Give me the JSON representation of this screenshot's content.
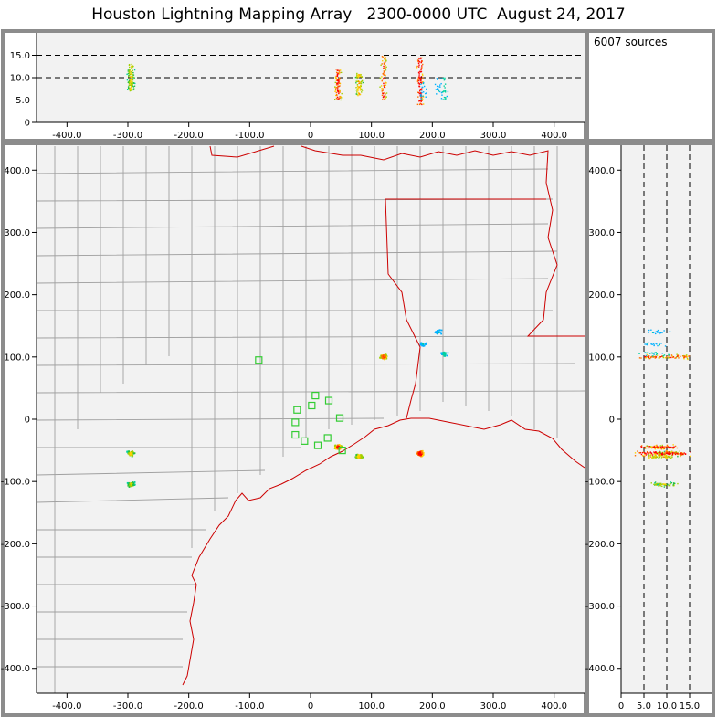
{
  "title": "Houston Lightning Mapping Array   2300-0000 UTC  August 24, 2017",
  "source_count": "6007 sources",
  "colors": {
    "frame": "#8c8c8c",
    "plot_bg": "#f2f2f2",
    "county_line": "#a0a0a0",
    "state_coast_line": "#cc0000",
    "station_marker": "#33cc33",
    "ref_line": "#000000"
  },
  "chart_data": {
    "type": "scatter",
    "panels": {
      "altitude_vs_x": {
        "xlim": [
          -450,
          450
        ],
        "ylim": [
          0,
          20
        ],
        "x_ticks": [
          "-400.0",
          "-300.0",
          "-200.0",
          "-100.0",
          "0",
          "100.0",
          "200.0",
          "300.0",
          "400.0"
        ],
        "y_ticks": [
          "0",
          "5.0",
          "10.0",
          "15.0"
        ],
        "reference_levels": [
          5,
          10,
          15
        ]
      },
      "plan_view": {
        "xlim": [
          -450,
          450
        ],
        "ylim": [
          -440,
          440
        ],
        "x_ticks": [
          "-400.0",
          "-300.0",
          "-200.0",
          "-100.0",
          "0",
          "100.0",
          "200.0",
          "300.0",
          "400.0"
        ],
        "y_ticks": [
          "-400.0",
          "-300.0",
          "-200.0",
          "-100.0",
          "0",
          "100.0",
          "200.0",
          "300.0",
          "400.0"
        ]
      },
      "y_vs_altitude": {
        "xlim": [
          0,
          20
        ],
        "ylim": [
          -440,
          440
        ],
        "x_ticks": [
          "0",
          "5.0",
          "10.0",
          "15.0"
        ],
        "reference_levels": [
          5,
          10,
          15
        ]
      }
    },
    "clusters": [
      {
        "x": -295,
        "y": -55,
        "alt_min": 7,
        "alt_max": 13,
        "density": 1.0
      },
      {
        "x": -295,
        "y": -105,
        "alt_min": 7,
        "alt_max": 12,
        "density": 0.9
      },
      {
        "x": 45,
        "y": -45,
        "alt_min": 5,
        "alt_max": 12,
        "density": 1.4
      },
      {
        "x": 80,
        "y": -60,
        "alt_min": 6,
        "alt_max": 11,
        "density": 1.1
      },
      {
        "x": 120,
        "y": 100,
        "alt_min": 5,
        "alt_max": 15,
        "density": 1.3
      },
      {
        "x": 180,
        "y": -55,
        "alt_min": 4,
        "alt_max": 15,
        "density": 1.6
      },
      {
        "x": 220,
        "y": 105,
        "alt_min": 5,
        "alt_max": 10,
        "density": 0.4
      },
      {
        "x": 210,
        "y": 140,
        "alt_min": 6,
        "alt_max": 10,
        "density": 0.3
      },
      {
        "x": 185,
        "y": 120,
        "alt_min": 5,
        "alt_max": 9,
        "density": 0.3
      }
    ],
    "stations": [
      {
        "x": -85,
        "y": 95
      },
      {
        "x": -22,
        "y": 15
      },
      {
        "x": -25,
        "y": -5
      },
      {
        "x": -25,
        "y": -25
      },
      {
        "x": -10,
        "y": -35
      },
      {
        "x": 2,
        "y": 22
      },
      {
        "x": 8,
        "y": 38
      },
      {
        "x": 12,
        "y": -42
      },
      {
        "x": 28,
        "y": -30
      },
      {
        "x": 30,
        "y": 30
      },
      {
        "x": 48,
        "y": 2
      },
      {
        "x": 52,
        "y": -50
      }
    ]
  }
}
